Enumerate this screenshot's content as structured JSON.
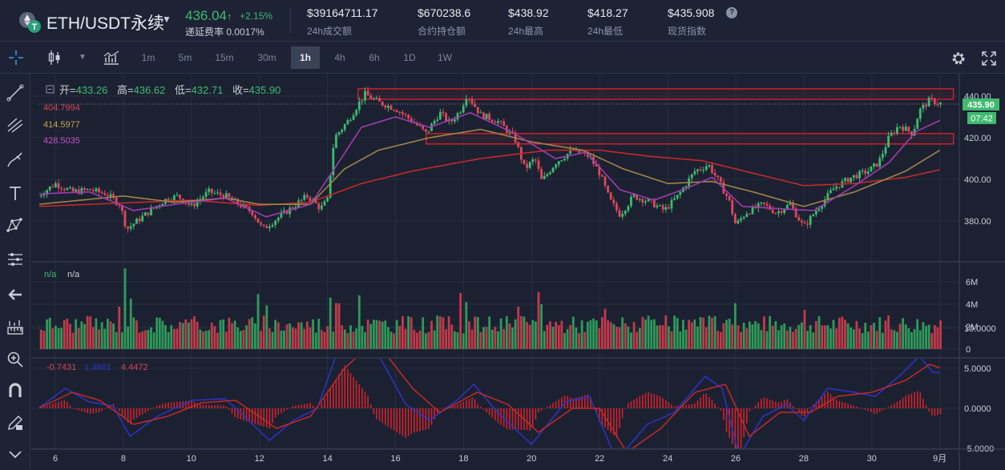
{
  "header": {
    "pair": "ETH/USDT永续",
    "price": "436.04",
    "price_arrow": "↑",
    "change": "+2.15%",
    "funding_label": "递延费率 0.0017%",
    "stats": [
      {
        "value": "$39164711.17",
        "label": "24h成交额"
      },
      {
        "value": "$670238.6",
        "label": "合约持仓额"
      },
      {
        "value": "$438.92",
        "label": "24h最高"
      },
      {
        "value": "$418.27",
        "label": "24h最低"
      },
      {
        "value": "$435.908",
        "label": "现货指数"
      }
    ],
    "help_icon": "?"
  },
  "toolbar": {
    "timeframes": [
      "1m",
      "5m",
      "15m",
      "30m",
      "1h",
      "4h",
      "6h",
      "1D",
      "1W"
    ],
    "active": "1h"
  },
  "legend": {
    "open_label": "开=",
    "open": "433.26",
    "high_label": "高=",
    "high": "436.62",
    "low_label": "低=",
    "low": "432.71",
    "close_label": "收=",
    "close": "435.90",
    "ma_red": "404.7994",
    "ma_tan": "414.5977",
    "ma_purple": "428.5035",
    "vol_a": "n/a",
    "vol_b": "n/a",
    "macd_a": "-0.7431",
    "macd_b": "1.3881",
    "macd_c": "4.4472"
  },
  "price_tag": "435.90",
  "countdown_tag": "07:42",
  "colors": {
    "bg": "#1b2131",
    "up": "#3fba6f",
    "down": "#e0475c",
    "ma_red": "#c62828",
    "ma_tan": "#a08448",
    "ma_purple": "#a23ab0",
    "dif": "#2c34c9",
    "dea": "#c62828"
  },
  "icons": [
    "crosshair-icon",
    "trendline-icon",
    "fork-icon",
    "brush-icon",
    "text-icon",
    "pattern-icon",
    "measure-icon",
    "back-arrow-icon",
    "ruler-icon",
    "zoom-icon",
    "magnet-icon",
    "pencil-lock-icon",
    "candle-type-icon",
    "indicator-icon",
    "gear-icon",
    "fullscreen-icon"
  ],
  "chart_data": {
    "type": "candlestick",
    "x_ticks": [
      "6",
      "8",
      "10",
      "12",
      "14",
      "16",
      "18",
      "20",
      "22",
      "24",
      "26",
      "28",
      "30",
      "9月"
    ],
    "price_axis": {
      "ticks": [
        440,
        420,
        400,
        380
      ],
      "labels": [
        "440.00",
        "420.00",
        "400.00",
        "380.00"
      ],
      "range": [
        367,
        447
      ]
    },
    "volume_axis": {
      "ticks": [
        6,
        4,
        2,
        0
      ],
      "labels": [
        "6M",
        "4M",
        "2M",
        "0"
      ],
      "range": [
        0,
        6.6
      ]
    },
    "macd_axis": {
      "ticks": [
        10,
        5,
        0,
        -5
      ],
      "labels": [
        "10.0000",
        "5.0000",
        "0.0000",
        "-5.0000"
      ],
      "range": [
        -8,
        11
      ]
    },
    "close_path": [
      {
        "d": 5.5,
        "p": 392
      },
      {
        "d": 6.0,
        "p": 398
      },
      {
        "d": 6.5,
        "p": 394
      },
      {
        "d": 7.0,
        "p": 395
      },
      {
        "d": 7.5,
        "p": 393
      },
      {
        "d": 7.9,
        "p": 388
      },
      {
        "d": 8.1,
        "p": 376
      },
      {
        "d": 8.4,
        "p": 380
      },
      {
        "d": 8.8,
        "p": 385
      },
      {
        "d": 9.2,
        "p": 390
      },
      {
        "d": 9.6,
        "p": 392
      },
      {
        "d": 10.0,
        "p": 387
      },
      {
        "d": 10.5,
        "p": 394
      },
      {
        "d": 11.0,
        "p": 392
      },
      {
        "d": 11.4,
        "p": 388
      },
      {
        "d": 11.8,
        "p": 384
      },
      {
        "d": 12.1,
        "p": 376
      },
      {
        "d": 12.5,
        "p": 381
      },
      {
        "d": 13.0,
        "p": 387
      },
      {
        "d": 13.4,
        "p": 392
      },
      {
        "d": 13.8,
        "p": 386
      },
      {
        "d": 14.0,
        "p": 390
      },
      {
        "d": 14.2,
        "p": 420
      },
      {
        "d": 14.6,
        "p": 428
      },
      {
        "d": 14.9,
        "p": 436
      },
      {
        "d": 15.1,
        "p": 441
      },
      {
        "d": 15.5,
        "p": 437
      },
      {
        "d": 16.0,
        "p": 434
      },
      {
        "d": 16.5,
        "p": 428
      },
      {
        "d": 16.9,
        "p": 422
      },
      {
        "d": 17.3,
        "p": 432
      },
      {
        "d": 17.6,
        "p": 427
      },
      {
        "d": 17.9,
        "p": 433
      },
      {
        "d": 18.1,
        "p": 441
      },
      {
        "d": 18.5,
        "p": 431
      },
      {
        "d": 19.0,
        "p": 428
      },
      {
        "d": 19.5,
        "p": 420
      },
      {
        "d": 19.8,
        "p": 405
      },
      {
        "d": 20.1,
        "p": 410
      },
      {
        "d": 20.3,
        "p": 399
      },
      {
        "d": 20.7,
        "p": 408
      },
      {
        "d": 21.2,
        "p": 414
      },
      {
        "d": 21.7,
        "p": 411
      },
      {
        "d": 22.0,
        "p": 403
      },
      {
        "d": 22.3,
        "p": 390
      },
      {
        "d": 22.6,
        "p": 383
      },
      {
        "d": 23.0,
        "p": 392
      },
      {
        "d": 23.5,
        "p": 389
      },
      {
        "d": 23.9,
        "p": 385
      },
      {
        "d": 24.3,
        "p": 392
      },
      {
        "d": 24.8,
        "p": 404
      },
      {
        "d": 25.2,
        "p": 407
      },
      {
        "d": 25.5,
        "p": 399
      },
      {
        "d": 25.8,
        "p": 390
      },
      {
        "d": 26.0,
        "p": 378
      },
      {
        "d": 26.3,
        "p": 384
      },
      {
        "d": 26.8,
        "p": 388
      },
      {
        "d": 27.2,
        "p": 384
      },
      {
        "d": 27.6,
        "p": 388
      },
      {
        "d": 28.0,
        "p": 377
      },
      {
        "d": 28.4,
        "p": 386
      },
      {
        "d": 28.9,
        "p": 396
      },
      {
        "d": 29.4,
        "p": 401
      },
      {
        "d": 29.9,
        "p": 404
      },
      {
        "d": 30.2,
        "p": 408
      },
      {
        "d": 30.5,
        "p": 420
      },
      {
        "d": 30.8,
        "p": 426
      },
      {
        "d": 31.2,
        "p": 422
      },
      {
        "d": 31.4,
        "p": 433
      },
      {
        "d": 31.7,
        "p": 438
      },
      {
        "d": 32.1,
        "p": 436
      }
    ],
    "ma_red": [
      {
        "d": 5.5,
        "p": 387
      },
      {
        "d": 10.0,
        "p": 390
      },
      {
        "d": 12.0,
        "p": 387.5
      },
      {
        "d": 13.5,
        "p": 389
      },
      {
        "d": 15.0,
        "p": 398
      },
      {
        "d": 16.5,
        "p": 404
      },
      {
        "d": 18.5,
        "p": 410
      },
      {
        "d": 20.5,
        "p": 414
      },
      {
        "d": 22.0,
        "p": 414
      },
      {
        "d": 23.5,
        "p": 411
      },
      {
        "d": 25.0,
        "p": 409
      },
      {
        "d": 26.5,
        "p": 403
      },
      {
        "d": 28.0,
        "p": 397
      },
      {
        "d": 29.5,
        "p": 398
      },
      {
        "d": 31.0,
        "p": 401
      },
      {
        "d": 32.1,
        "p": 405
      }
    ],
    "ma_tan": [
      {
        "d": 5.5,
        "p": 388
      },
      {
        "d": 8.0,
        "p": 392
      },
      {
        "d": 9.5,
        "p": 389
      },
      {
        "d": 11.0,
        "p": 391
      },
      {
        "d": 12.0,
        "p": 388
      },
      {
        "d": 13.5,
        "p": 388
      },
      {
        "d": 14.5,
        "p": 405
      },
      {
        "d": 15.5,
        "p": 414
      },
      {
        "d": 17.0,
        "p": 420
      },
      {
        "d": 18.5,
        "p": 424
      },
      {
        "d": 20.0,
        "p": 418
      },
      {
        "d": 21.5,
        "p": 414
      },
      {
        "d": 22.7,
        "p": 405
      },
      {
        "d": 24.0,
        "p": 398
      },
      {
        "d": 25.3,
        "p": 399
      },
      {
        "d": 26.5,
        "p": 394
      },
      {
        "d": 28.0,
        "p": 387
      },
      {
        "d": 29.5,
        "p": 394
      },
      {
        "d": 31.0,
        "p": 404
      },
      {
        "d": 32.1,
        "p": 415
      }
    ],
    "ma_purple": [
      {
        "d": 5.5,
        "p": 393
      },
      {
        "d": 7.0,
        "p": 394
      },
      {
        "d": 8.3,
        "p": 385
      },
      {
        "d": 9.5,
        "p": 388
      },
      {
        "d": 11.0,
        "p": 391
      },
      {
        "d": 12.2,
        "p": 382
      },
      {
        "d": 13.5,
        "p": 388
      },
      {
        "d": 14.2,
        "p": 405
      },
      {
        "d": 15.0,
        "p": 425
      },
      {
        "d": 16.0,
        "p": 430
      },
      {
        "d": 17.0,
        "p": 425
      },
      {
        "d": 18.2,
        "p": 432
      },
      {
        "d": 19.5,
        "p": 422
      },
      {
        "d": 20.7,
        "p": 410
      },
      {
        "d": 21.6,
        "p": 413
      },
      {
        "d": 22.6,
        "p": 395
      },
      {
        "d": 23.6,
        "p": 390
      },
      {
        "d": 24.6,
        "p": 396
      },
      {
        "d": 25.3,
        "p": 401
      },
      {
        "d": 26.2,
        "p": 387
      },
      {
        "d": 27.2,
        "p": 386
      },
      {
        "d": 28.3,
        "p": 385
      },
      {
        "d": 29.5,
        "p": 397
      },
      {
        "d": 30.5,
        "p": 408
      },
      {
        "d": 31.3,
        "p": 423
      },
      {
        "d": 32.1,
        "p": 429
      }
    ],
    "zones": [
      {
        "x1": 14.9,
        "x2": 32.4,
        "p1": 443.5,
        "p2": 438.5
      },
      {
        "x1": 16.9,
        "x2": 32.4,
        "p1": 422,
        "p2": 417
      }
    ],
    "volume_spikes": [
      {
        "d": 7.9,
        "v": 3.8
      },
      {
        "d": 8.05,
        "v": 7.2
      },
      {
        "d": 8.2,
        "v": 4.5
      },
      {
        "d": 12.0,
        "v": 4.9
      },
      {
        "d": 12.2,
        "v": 3.9
      },
      {
        "d": 14.1,
        "v": 4.6
      },
      {
        "d": 14.3,
        "v": 4.1
      },
      {
        "d": 14.95,
        "v": 4.8
      },
      {
        "d": 17.9,
        "v": 5.0
      },
      {
        "d": 18.1,
        "v": 4.2
      },
      {
        "d": 19.6,
        "v": 3.8
      },
      {
        "d": 20.2,
        "v": 5.1
      },
      {
        "d": 20.3,
        "v": 4.0
      },
      {
        "d": 22.2,
        "v": 3.6
      },
      {
        "d": 26.0,
        "v": 4.1
      },
      {
        "d": 28.0,
        "v": 3.5
      },
      {
        "d": 30.5,
        "v": 3.0
      }
    ],
    "macd_dif": [
      {
        "d": 5.5,
        "v": 0.0
      },
      {
        "d": 6.3,
        "v": 2.5
      },
      {
        "d": 7.0,
        "v": 0.8
      },
      {
        "d": 7.7,
        "v": 0.3
      },
      {
        "d": 8.2,
        "v": -3.5
      },
      {
        "d": 9.0,
        "v": -1.0
      },
      {
        "d": 10.0,
        "v": 1.0
      },
      {
        "d": 11.0,
        "v": 1.2
      },
      {
        "d": 12.3,
        "v": -4.0
      },
      {
        "d": 13.0,
        "v": -1.5
      },
      {
        "d": 13.7,
        "v": 0.0
      },
      {
        "d": 14.5,
        "v": 9.5
      },
      {
        "d": 15.2,
        "v": 9.0
      },
      {
        "d": 16.3,
        "v": 0.5
      },
      {
        "d": 17.0,
        "v": -1.5
      },
      {
        "d": 17.8,
        "v": 1.0
      },
      {
        "d": 18.3,
        "v": 3.0
      },
      {
        "d": 19.0,
        "v": -0.5
      },
      {
        "d": 20.0,
        "v": -4.5
      },
      {
        "d": 21.0,
        "v": 0.8
      },
      {
        "d": 21.7,
        "v": 1.5
      },
      {
        "d": 22.5,
        "v": -6.5
      },
      {
        "d": 23.4,
        "v": -2.0
      },
      {
        "d": 24.2,
        "v": -0.5
      },
      {
        "d": 25.1,
        "v": 4.0
      },
      {
        "d": 25.6,
        "v": 2.5
      },
      {
        "d": 26.1,
        "v": -6.0
      },
      {
        "d": 26.8,
        "v": -1.0
      },
      {
        "d": 27.5,
        "v": 0.5
      },
      {
        "d": 28.0,
        "v": -1.5
      },
      {
        "d": 28.7,
        "v": 2.5
      },
      {
        "d": 29.5,
        "v": 2.0
      },
      {
        "d": 30.1,
        "v": 1.5
      },
      {
        "d": 30.8,
        "v": 4.0
      },
      {
        "d": 31.4,
        "v": 6.5
      },
      {
        "d": 31.8,
        "v": 4.5
      },
      {
        "d": 32.1,
        "v": 4.4
      }
    ],
    "macd_dea": [
      {
        "d": 5.5,
        "v": 0.0
      },
      {
        "d": 6.5,
        "v": 2.0
      },
      {
        "d": 7.3,
        "v": 1.0
      },
      {
        "d": 8.3,
        "v": -2.0
      },
      {
        "d": 9.3,
        "v": -1.0
      },
      {
        "d": 10.3,
        "v": 0.7
      },
      {
        "d": 11.3,
        "v": 1.0
      },
      {
        "d": 12.5,
        "v": -2.5
      },
      {
        "d": 13.5,
        "v": -1.0
      },
      {
        "d": 14.5,
        "v": 5.0
      },
      {
        "d": 15.4,
        "v": 8.5
      },
      {
        "d": 16.5,
        "v": 2.5
      },
      {
        "d": 17.3,
        "v": -0.5
      },
      {
        "d": 18.4,
        "v": 2.0
      },
      {
        "d": 19.3,
        "v": 0.5
      },
      {
        "d": 20.2,
        "v": -3.0
      },
      {
        "d": 21.2,
        "v": 0.0
      },
      {
        "d": 22.0,
        "v": 0.0
      },
      {
        "d": 22.8,
        "v": -5.5
      },
      {
        "d": 23.8,
        "v": -2.5
      },
      {
        "d": 24.8,
        "v": 2.0
      },
      {
        "d": 25.7,
        "v": 3.0
      },
      {
        "d": 26.4,
        "v": -3.5
      },
      {
        "d": 27.3,
        "v": -0.5
      },
      {
        "d": 28.2,
        "v": -0.5
      },
      {
        "d": 29.0,
        "v": 1.5
      },
      {
        "d": 30.0,
        "v": 2.0
      },
      {
        "d": 31.0,
        "v": 3.5
      },
      {
        "d": 31.7,
        "v": 5.5
      },
      {
        "d": 32.1,
        "v": 4.9
      }
    ]
  }
}
